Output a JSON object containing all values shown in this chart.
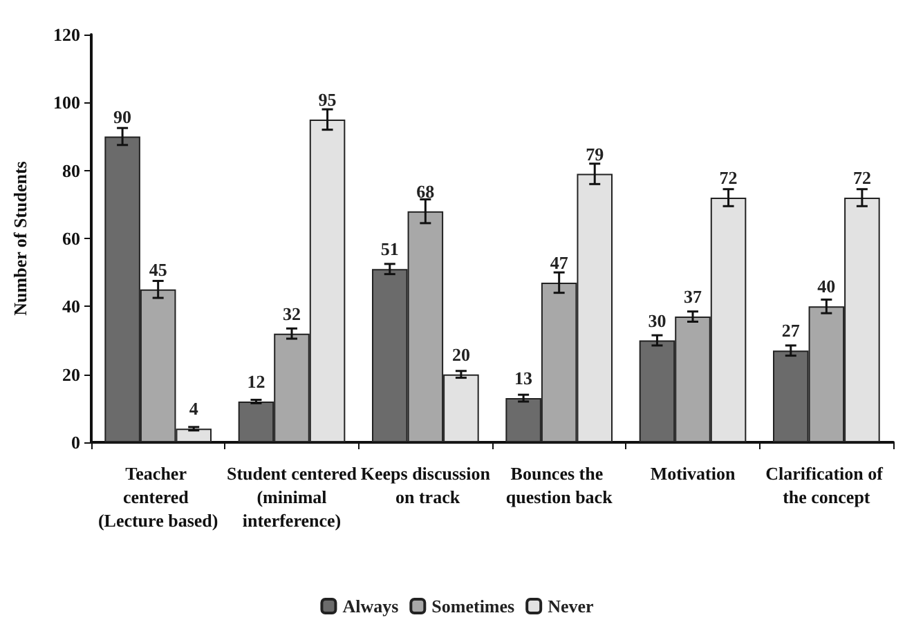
{
  "chart_data": {
    "type": "bar",
    "ylabel": "Number of Students",
    "categories": [
      "Teacher centered (Lecture based)",
      "Student centered (minimal interference)",
      "Keeps discussion on track",
      "Bounces the question back",
      "Motivation",
      "Clarification of the concept"
    ],
    "series": [
      {
        "name": "Always",
        "color": "#6b6b6b",
        "values": [
          90,
          12,
          51,
          13,
          30,
          27
        ],
        "errors": [
          2.5,
          0.5,
          1.5,
          1,
          1.5,
          1.5
        ]
      },
      {
        "name": "Sometimes",
        "color": "#a8a8a8",
        "values": [
          45,
          32,
          68,
          47,
          37,
          40
        ],
        "errors": [
          2.5,
          1.5,
          3.5,
          3,
          1.5,
          2
        ]
      },
      {
        "name": "Never",
        "color": "#e2e2e2",
        "values": [
          4,
          95,
          20,
          79,
          72,
          72
        ],
        "errors": [
          0.5,
          3,
          1,
          3,
          2.5,
          2.5
        ]
      }
    ],
    "ylim": [
      0,
      120
    ],
    "yticks": [
      0,
      20,
      40,
      60,
      80,
      100,
      120
    ],
    "grid": false,
    "legend": "bottom",
    "data_labels": true
  }
}
